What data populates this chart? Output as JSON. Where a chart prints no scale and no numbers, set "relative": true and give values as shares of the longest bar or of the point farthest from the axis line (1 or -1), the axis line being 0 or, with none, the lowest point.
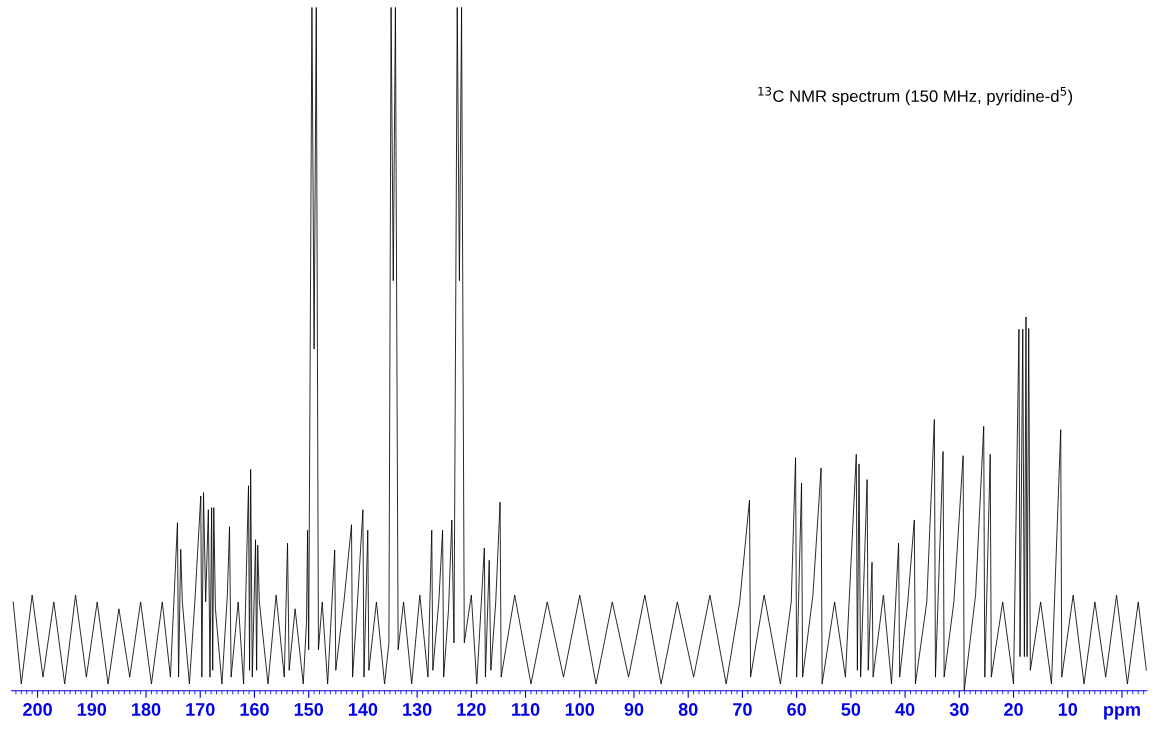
{
  "chart_data": {
    "type": "line",
    "relative": true,
    "annotations": [
      "$^{13}$C NMR spectrum (150 MHz, pyridine-d$^{5}$)"
    ],
    "xlim": [
      204.8,
      -4.6
    ],
    "xticks": [
      200,
      190,
      180,
      170,
      160,
      150,
      140,
      130,
      120,
      110,
      100,
      90,
      80,
      70,
      60,
      50,
      40,
      30,
      20,
      10,
      {
        "value": 0,
        "label": "ppm"
      }
    ],
    "tick_labels": "x",
    "x": [
      204.5,
      203,
      201,
      199,
      197,
      195,
      193,
      191,
      189,
      187,
      185,
      183,
      181,
      179,
      177,
      175.5,
      174.2,
      174.0,
      173.6,
      173.3,
      172,
      171,
      169.9,
      169.7,
      169.4,
      169.0,
      168.5,
      168.2,
      167.9,
      167.7,
      167.5,
      167.2,
      166,
      165,
      164.6,
      164.3,
      163,
      162,
      161.1,
      160.9,
      160.7,
      160.4,
      159.8,
      159.6,
      159.4,
      159.1,
      157.5,
      156,
      154.5,
      153.9,
      153.6,
      152.5,
      151,
      150.4,
      150.2,
      150.0,
      149.4,
      149.0,
      148.6,
      148.2,
      147.5,
      146.5,
      145.2,
      145,
      143.5,
      142.1,
      141.9,
      141,
      140,
      139.8,
      139.1,
      138.9,
      137.5,
      136,
      135.2,
      134.8,
      134.4,
      134.0,
      133.5,
      132.5,
      131,
      129.5,
      128,
      127.3,
      127.1,
      126,
      125.3,
      125.1,
      124.2,
      123.6,
      123.2,
      122.6,
      122.2,
      121.8,
      121.3,
      120,
      119,
      117.6,
      117.4,
      116.7,
      116.4,
      115.5,
      114.7,
      114.5,
      112,
      109,
      106,
      103,
      100,
      97,
      94,
      91,
      88,
      85,
      82,
      79,
      76,
      73,
      70.5,
      68.7,
      68.5,
      66,
      63,
      61,
      60.2,
      60,
      59.1,
      58.9,
      57,
      55.5,
      55.3,
      53,
      51,
      49,
      48.8,
      48.5,
      48.2,
      47,
      46.8,
      46.1,
      45.9,
      44,
      42.5,
      41.2,
      41,
      39.5,
      38.3,
      38.1,
      36,
      34.6,
      34.4,
      33,
      32.8,
      31,
      29.3,
      29.1,
      27,
      25.5,
      25.3,
      24.3,
      24.1,
      22,
      20,
      19,
      18.8,
      18.3,
      18.0,
      17.7,
      17.5,
      17.2,
      16.9,
      15,
      13,
      11.3,
      11.1,
      9,
      7,
      5,
      3,
      1,
      -1,
      -3,
      -4.5
    ],
    "series": [
      {
        "color": "#000000",
        "values": [
          0.13,
          0.01,
          0.14,
          0.02,
          0.13,
          0.01,
          0.14,
          0.02,
          0.13,
          0.01,
          0.12,
          0.02,
          0.13,
          0.01,
          0.13,
          0.02,
          0.246,
          0.02,
          0.207,
          0.13,
          0.01,
          0.13,
          0.285,
          0.02,
          0.29,
          0.13,
          0.265,
          0.02,
          0.268,
          0.03,
          0.268,
          0.12,
          0.01,
          0.14,
          0.24,
          0.02,
          0.13,
          0.01,
          0.3,
          0.03,
          0.324,
          0.02,
          0.221,
          0.03,
          0.213,
          0.13,
          0.01,
          0.14,
          0.02,
          0.216,
          0.03,
          0.12,
          0.01,
          0.1,
          0.235,
          0.06,
          1,
          0.5,
          1,
          0.06,
          0.13,
          0.01,
          0.206,
          0.03,
          0.13,
          0.243,
          0.02,
          0.13,
          0.265,
          0.02,
          0.235,
          0.03,
          0.13,
          0.01,
          0.07,
          1,
          0.6,
          1,
          0.06,
          0.13,
          0.01,
          0.14,
          0.02,
          0.235,
          0.03,
          0.13,
          0.235,
          0.02,
          0.12,
          0.25,
          0.07,
          1,
          0.6,
          1,
          0.07,
          0.14,
          0.01,
          0.209,
          0.02,
          0.191,
          0.03,
          0.13,
          0.276,
          0.02,
          0.14,
          0.01,
          0.13,
          0.02,
          0.14,
          0.01,
          0.13,
          0.02,
          0.14,
          0.01,
          0.13,
          0.02,
          0.14,
          0.01,
          0.13,
          0.279,
          0.02,
          0.14,
          0.01,
          0.13,
          0.341,
          0.02,
          0.304,
          0.02,
          0.14,
          0.326,
          0.01,
          0.13,
          0.02,
          0.346,
          0.03,
          0.332,
          0.02,
          0.309,
          0.03,
          0.188,
          0.02,
          0.14,
          0.01,
          0.216,
          0.02,
          0.13,
          0.25,
          0.01,
          0.13,
          0.397,
          0.02,
          0.35,
          0.02,
          0.13,
          0.344,
          0.0,
          0.14,
          0.387,
          0.02,
          0.346,
          0.02,
          0.13,
          0.01,
          0.529,
          0.05,
          0.529,
          0.05,
          0.547,
          0.05,
          0.53,
          0.03,
          0.13,
          0.01,
          0.382,
          0.02,
          0.14,
          0.01,
          0.13,
          0.02,
          0.14,
          0.01,
          0.13,
          0.03
        ]
      }
    ]
  }
}
